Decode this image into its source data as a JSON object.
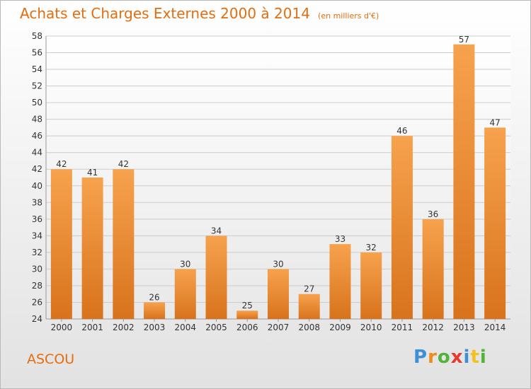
{
  "chart_data": {
    "type": "bar",
    "title": "Achats et Charges Externes 2000 à 2014",
    "subtitle": "(en milliers d'€)",
    "categories": [
      "2000",
      "2001",
      "2002",
      "2003",
      "2004",
      "2005",
      "2006",
      "2007",
      "2008",
      "2009",
      "2010",
      "2011",
      "2012",
      "2013",
      "2014"
    ],
    "values": [
      42,
      41,
      42,
      26,
      30,
      34,
      25,
      30,
      27,
      33,
      32,
      46,
      36,
      57,
      47
    ],
    "ylim": [
      24,
      58
    ],
    "yticks": [
      24,
      26,
      28,
      30,
      32,
      34,
      36,
      38,
      40,
      42,
      44,
      46,
      48,
      50,
      52,
      54,
      56,
      58
    ],
    "grid": true,
    "legend": "none",
    "colors": {
      "bar_light": "#f7a24e",
      "bar_dark": "#d8731c",
      "label": "#333333",
      "grid": "#cccccc"
    }
  },
  "footer": {
    "commune": "ASCOU",
    "logo_letters": [
      "P",
      "r",
      "o",
      "x",
      "i",
      "t",
      "i"
    ],
    "logo_colors": [
      "#3d8fd6",
      "#f08a1c",
      "#52b33a",
      "#e63a2e",
      "#3d8fd6",
      "#f0c21c",
      "#52b33a"
    ]
  }
}
